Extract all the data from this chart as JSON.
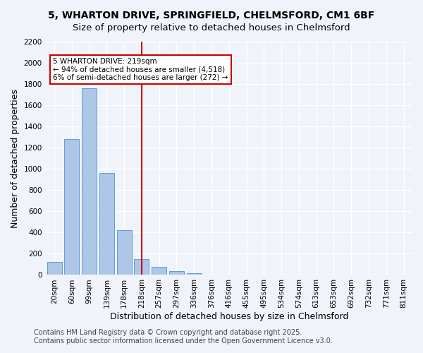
{
  "title_line1": "5, WHARTON DRIVE, SPRINGFIELD, CHELMSFORD, CM1 6BF",
  "title_line2": "Size of property relative to detached houses in Chelmsford",
  "categories": [
    "20sqm",
    "60sqm",
    "99sqm",
    "139sqm",
    "178sqm",
    "218sqm",
    "257sqm",
    "297sqm",
    "336sqm",
    "376sqm",
    "416sqm",
    "455sqm",
    "495sqm",
    "534sqm",
    "574sqm",
    "613sqm",
    "653sqm",
    "692sqm",
    "732sqm",
    "771sqm",
    "811sqm"
  ],
  "values": [
    120,
    1280,
    1760,
    960,
    420,
    150,
    75,
    35,
    15,
    0,
    0,
    0,
    0,
    0,
    0,
    0,
    0,
    0,
    0,
    0,
    0
  ],
  "bar_color": "#aec6e8",
  "bar_edge_color": "#5a9fd4",
  "ylabel": "Number of detached properties",
  "xlabel": "Distribution of detached houses by size in Chelmsford",
  "ylim": [
    0,
    2200
  ],
  "yticks": [
    0,
    200,
    400,
    600,
    800,
    1000,
    1200,
    1400,
    1600,
    1800,
    2000,
    2200
  ],
  "vline_x_index": 5,
  "vline_color": "#cc0000",
  "annotation_text": "5 WHARTON DRIVE: 219sqm\n← 94% of detached houses are smaller (4,518)\n6% of semi-detached houses are larger (272) →",
  "annotation_box_color": "#ffffff",
  "annotation_box_edge_color": "#cc0000",
  "footer_line1": "Contains HM Land Registry data © Crown copyright and database right 2025.",
  "footer_line2": "Contains public sector information licensed under the Open Government Licence v3.0.",
  "background_color": "#f0f4fa",
  "grid_color": "#ffffff",
  "title_fontsize": 10,
  "axis_label_fontsize": 9,
  "tick_fontsize": 7.5,
  "footer_fontsize": 7
}
